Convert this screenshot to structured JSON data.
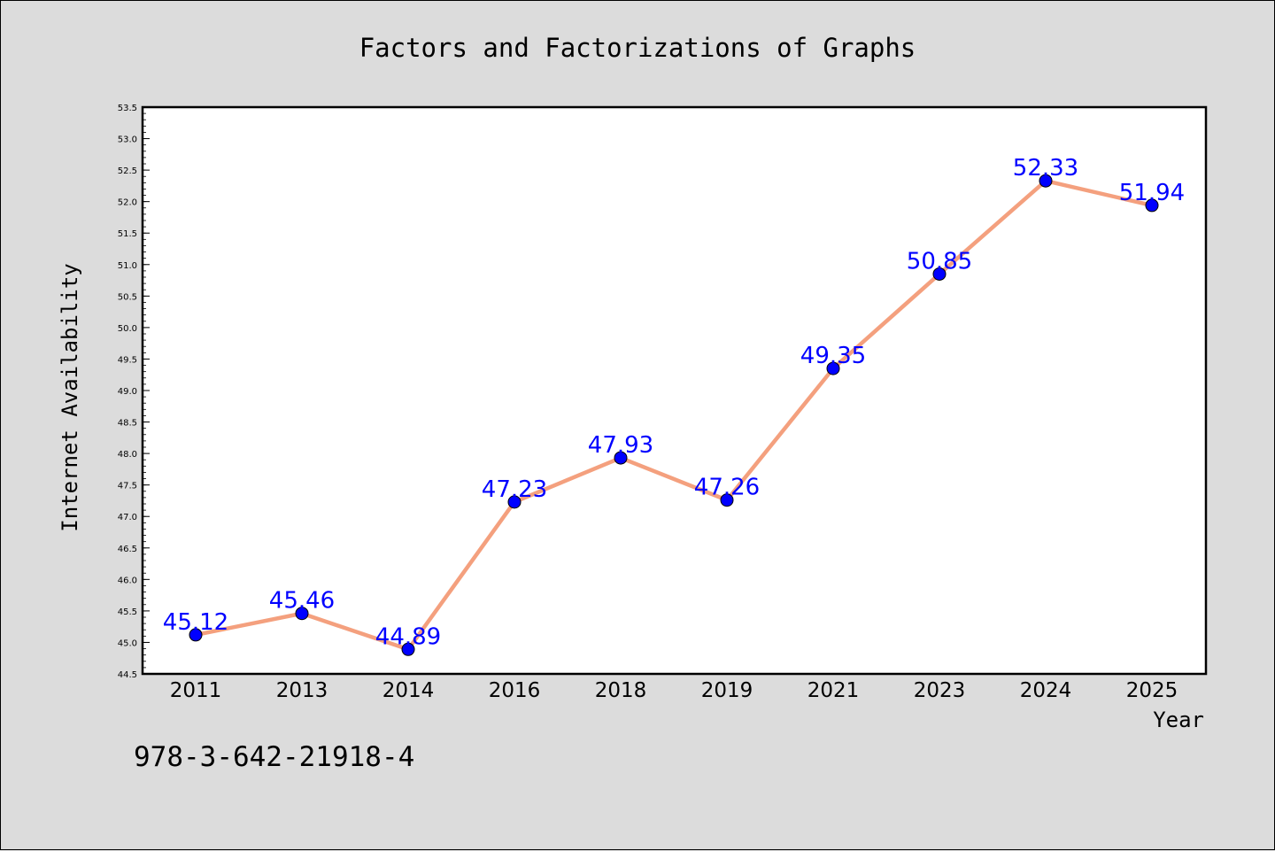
{
  "chart_data": {
    "type": "line",
    "title": "Factors and Factorizations of Graphs",
    "xlabel": "Year",
    "ylabel": "Internet Availability",
    "categories": [
      "2011",
      "2013",
      "2014",
      "2016",
      "2018",
      "2019",
      "2021",
      "2023",
      "2024",
      "2025"
    ],
    "series": [
      {
        "values": [
          45.12,
          45.46,
          44.89,
          47.23,
          47.93,
          47.26,
          49.35,
          50.85,
          52.33,
          51.94
        ],
        "labels": [
          "45.12",
          "45.46",
          "44.89",
          "47.23",
          "47.93",
          "47.26",
          "49.35",
          "50.85",
          "52.33",
          "51.94"
        ],
        "line_color": "#f4a07e",
        "marker_color": "#0000ff"
      }
    ],
    "ylim": [
      44.5,
      53.5
    ],
    "yticks": [
      "44.5",
      "45.0",
      "45.5",
      "46.0",
      "46.5",
      "47.0",
      "47.5",
      "48.0",
      "48.5",
      "49.0",
      "49.5",
      "50.0",
      "50.5",
      "51.0",
      "51.5",
      "52.0",
      "52.5",
      "53.0",
      "53.5"
    ],
    "grid": false,
    "legend": "none"
  },
  "annotation": {
    "isbn": "978-3-642-21918-4"
  },
  "colors": {
    "background": "#dcdcdc",
    "plot_background": "#ffffff",
    "data_label": "#0000ff"
  }
}
